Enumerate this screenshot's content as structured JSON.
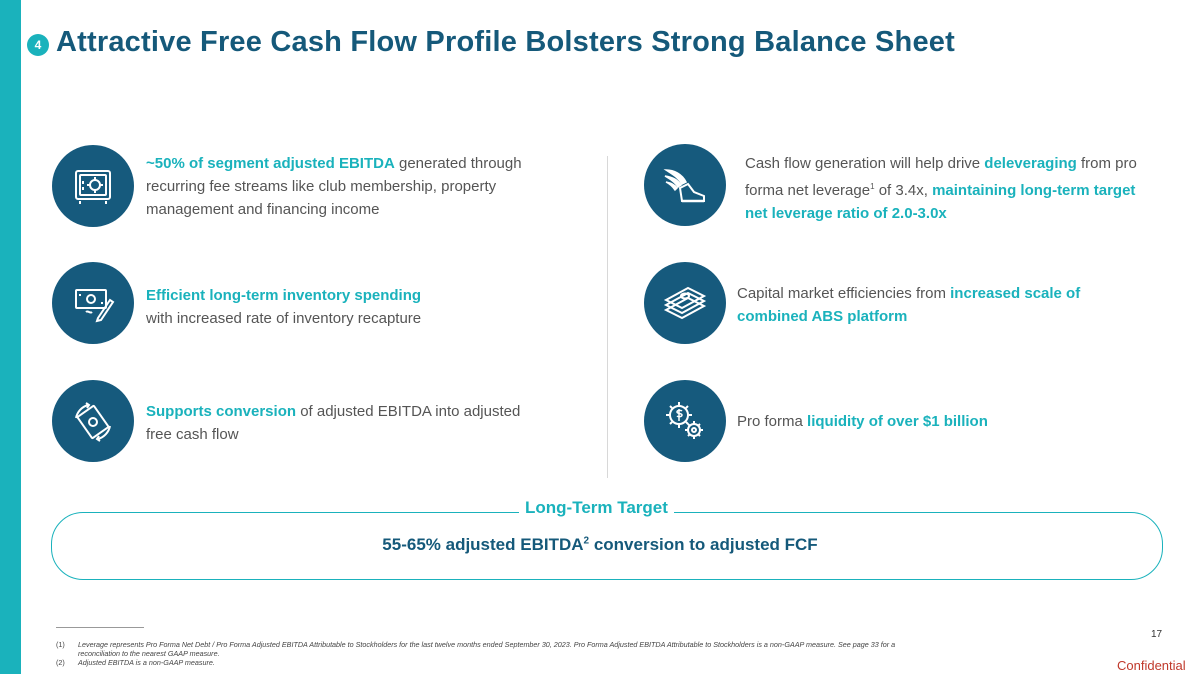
{
  "header": {
    "section_number": "4",
    "title": "Attractive Free Cash Flow Profile Bolsters Strong Balance Sheet"
  },
  "left_column": [
    {
      "icon": "safe-icon",
      "highlight": "~50% of segment adjusted EBITDA",
      "text": " generated through recurring fee streams like club membership, property management and financing income"
    },
    {
      "icon": "money-pen-icon",
      "highlight": "Efficient long-term inventory spending",
      "text": "with increased rate of inventory recapture"
    },
    {
      "icon": "cash-cycle-icon",
      "highlight": "Supports conversion",
      "text": " of adjusted EBITDA into adjusted free cash flow"
    }
  ],
  "right_column": [
    {
      "icon": "winged-shoe-icon",
      "text_a": "Cash flow generation will help drive ",
      "highlight_a": "deleveraging",
      "text_b": " from pro forma net leverage",
      "footnote_ref": "1",
      "text_c": " of 3.4x, ",
      "highlight_b": "maintaining long-term target net leverage ratio of 2.0-3.0x"
    },
    {
      "icon": "cash-stack-icon",
      "text": "Capital market efficiencies from ",
      "highlight": "increased scale of combined ABS platform"
    },
    {
      "icon": "dollar-gears-icon",
      "text": "Pro forma ",
      "highlight": "liquidity of over $1 billion"
    }
  ],
  "long_term_target": {
    "label": "Long-Term Target",
    "text_a": "55-65% adjusted EBITDA",
    "footnote_ref": "2",
    "text_b": " conversion to adjusted FCF"
  },
  "footnotes": [
    {
      "marker": "(1)",
      "text": "Leverage represents Pro Forma Net Debt / Pro Forma Adjusted EBITDA Attributable to Stockholders for the last twelve months ended September 30, 2023. Pro Forma Adjusted EBITDA Attributable to Stockholders is a non-GAAP measure. See page 33 for a reconciliation to the nearest GAAP measure."
    },
    {
      "marker": "(2)",
      "text": "Adjusted EBITDA is a non-GAAP measure."
    }
  ],
  "page_number": "17",
  "confidential": "Confidential",
  "colors": {
    "accent": "#1ab2bc",
    "navy": "#165a7d",
    "confidential": "#c0392b"
  }
}
